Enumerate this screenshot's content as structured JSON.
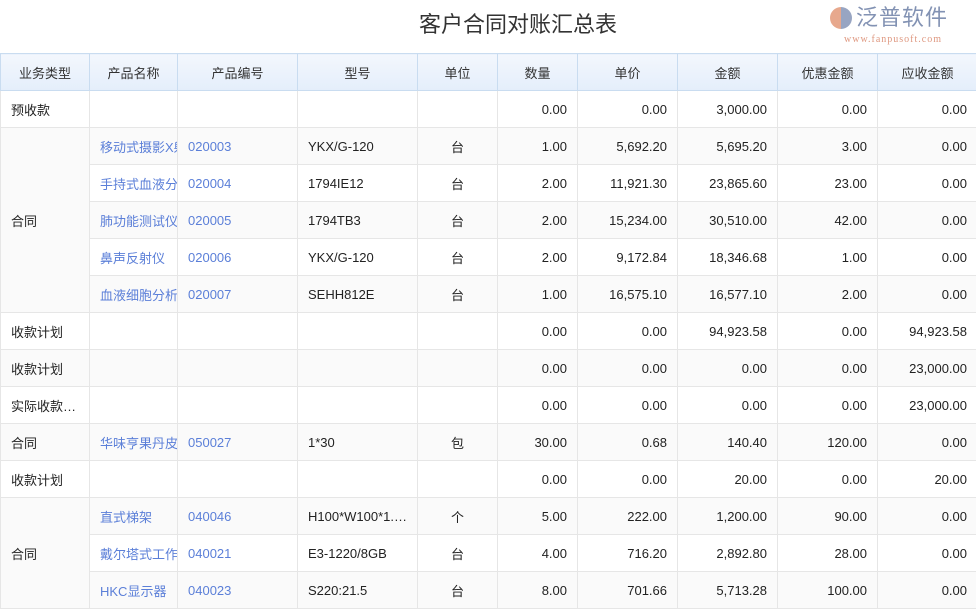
{
  "title": "客户合同对账汇总表",
  "columns": [
    "业务类型",
    "产品名称",
    "产品编号",
    "型号",
    "单位",
    "数量",
    "单价",
    "金额",
    "优惠金额",
    "应收金额"
  ],
  "rows": [
    {
      "type": "预收款",
      "name": "",
      "code": "",
      "model": "",
      "unit": "",
      "qty": "0.00",
      "price": "0.00",
      "amount": "3,000.00",
      "discount": "0.00",
      "receivable": "0.00"
    },
    {
      "type": "合同",
      "name": "移动式摄影X射线机",
      "code": "020003",
      "model": "YKX/G-120",
      "unit": "台",
      "qty": "1.00",
      "price": "5,692.20",
      "amount": "5,695.20",
      "discount": "3.00",
      "receivable": "0.00"
    },
    {
      "name": "手持式血液分析仪",
      "code": "020004",
      "model": "1794IE12",
      "unit": "台",
      "qty": "2.00",
      "price": "11,921.30",
      "amount": "23,865.60",
      "discount": "23.00",
      "receivable": "0.00"
    },
    {
      "name": "肺功能测试仪",
      "code": "020005",
      "model": "1794TB3",
      "unit": "台",
      "qty": "2.00",
      "price": "15,234.00",
      "amount": "30,510.00",
      "discount": "42.00",
      "receivable": "0.00"
    },
    {
      "name": "鼻声反射仪",
      "code": "020006",
      "model": "YKX/G-120",
      "unit": "台",
      "qty": "2.00",
      "price": "9,172.84",
      "amount": "18,346.68",
      "discount": "1.00",
      "receivable": "0.00"
    },
    {
      "name": "血液细胞分析仪",
      "code": "020007",
      "model": "SEHH812E",
      "unit": "台",
      "qty": "1.00",
      "price": "16,575.10",
      "amount": "16,577.10",
      "discount": "2.00",
      "receivable": "0.00"
    },
    {
      "type": "收款计划",
      "name": "",
      "code": "",
      "model": "",
      "unit": "",
      "qty": "0.00",
      "price": "0.00",
      "amount": "94,923.58",
      "discount": "0.00",
      "receivable": "94,923.58"
    },
    {
      "type": "收款计划",
      "name": "",
      "code": "",
      "model": "",
      "unit": "",
      "qty": "0.00",
      "price": "0.00",
      "amount": "0.00",
      "discount": "0.00",
      "receivable": "23,000.00"
    },
    {
      "type": "实际收款(…",
      "name": "",
      "code": "",
      "model": "",
      "unit": "",
      "qty": "0.00",
      "price": "0.00",
      "amount": "0.00",
      "discount": "0.00",
      "receivable": "23,000.00"
    },
    {
      "type": "合同",
      "name": "华味亨果丹皮",
      "code": "050027",
      "model": "1*30",
      "unit": "包",
      "qty": "30.00",
      "price": "0.68",
      "amount": "140.40",
      "discount": "120.00",
      "receivable": "0.00"
    },
    {
      "type": "收款计划",
      "name": "",
      "code": "",
      "model": "",
      "unit": "",
      "qty": "0.00",
      "price": "0.00",
      "amount": "20.00",
      "discount": "0.00",
      "receivable": "20.00"
    },
    {
      "type": "合同",
      "name": "直式梯架",
      "code": "040046",
      "model": "H100*W100*1.…",
      "unit": "个",
      "qty": "5.00",
      "price": "222.00",
      "amount": "1,200.00",
      "discount": "90.00",
      "receivable": "0.00"
    },
    {
      "name": "戴尔塔式工作站",
      "code": "040021",
      "model": "E3-1220/8GB",
      "unit": "台",
      "qty": "4.00",
      "price": "716.20",
      "amount": "2,892.80",
      "discount": "28.00",
      "receivable": "0.00"
    },
    {
      "name": "HKC显示器",
      "code": "040023",
      "model": "S220:21.5",
      "unit": "台",
      "qty": "8.00",
      "price": "701.66",
      "amount": "5,713.28",
      "discount": "100.00",
      "receivable": "0.00"
    }
  ],
  "rowspans": {
    "1": 5,
    "11": 3
  },
  "watermark": {
    "brand": "泛普软件",
    "url": "www.fanpusoft.com"
  }
}
